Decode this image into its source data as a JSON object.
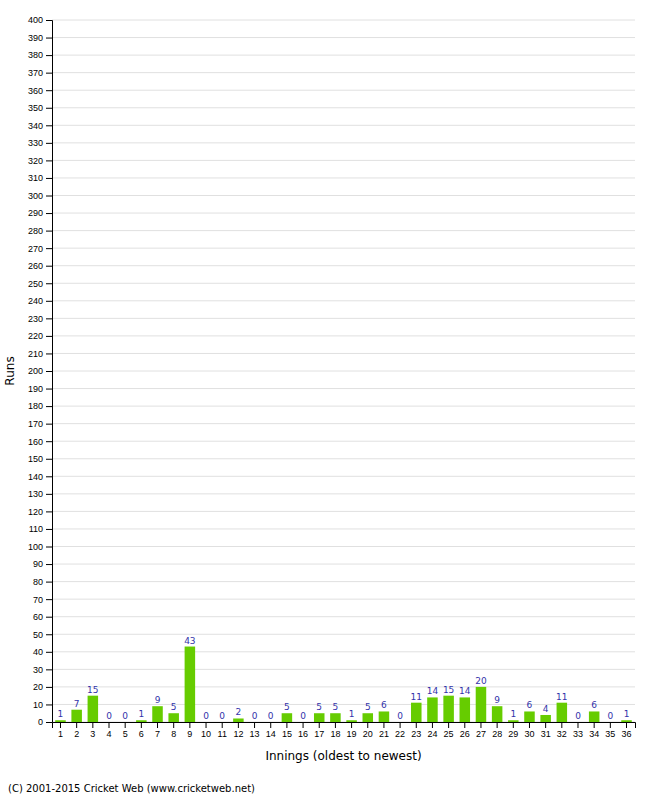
{
  "chart_data": {
    "type": "bar",
    "categories": [
      "1",
      "2",
      "3",
      "4",
      "5",
      "6",
      "7",
      "8",
      "9",
      "10",
      "11",
      "12",
      "13",
      "14",
      "15",
      "16",
      "17",
      "18",
      "19",
      "20",
      "21",
      "22",
      "23",
      "24",
      "25",
      "26",
      "27",
      "28",
      "29",
      "30",
      "31",
      "32",
      "33",
      "34",
      "35",
      "36"
    ],
    "values": [
      1,
      7,
      15,
      0,
      0,
      1,
      9,
      5,
      43,
      0,
      0,
      2,
      0,
      0,
      5,
      0,
      5,
      5,
      1,
      5,
      6,
      0,
      11,
      14,
      15,
      14,
      20,
      9,
      1,
      6,
      4,
      11,
      0,
      6,
      0,
      1
    ],
    "color": "#66cc00",
    "xlabel": "Innings (oldest to newest)",
    "ylabel": "Runs",
    "ylim": [
      0,
      400
    ],
    "yticks": [
      0,
      10,
      20,
      30,
      40,
      50,
      60,
      70,
      80,
      90,
      100,
      110,
      120,
      130,
      140,
      150,
      160,
      170,
      180,
      190,
      200,
      210,
      220,
      230,
      240,
      250,
      260,
      270,
      280,
      290,
      300,
      310,
      320,
      330,
      340,
      350,
      360,
      370,
      380,
      390,
      400
    ],
    "grid": true,
    "data_labels": true,
    "annotations": [
      "(C) 2001-2015 Cricket Web (www.cricketweb.net)"
    ]
  }
}
